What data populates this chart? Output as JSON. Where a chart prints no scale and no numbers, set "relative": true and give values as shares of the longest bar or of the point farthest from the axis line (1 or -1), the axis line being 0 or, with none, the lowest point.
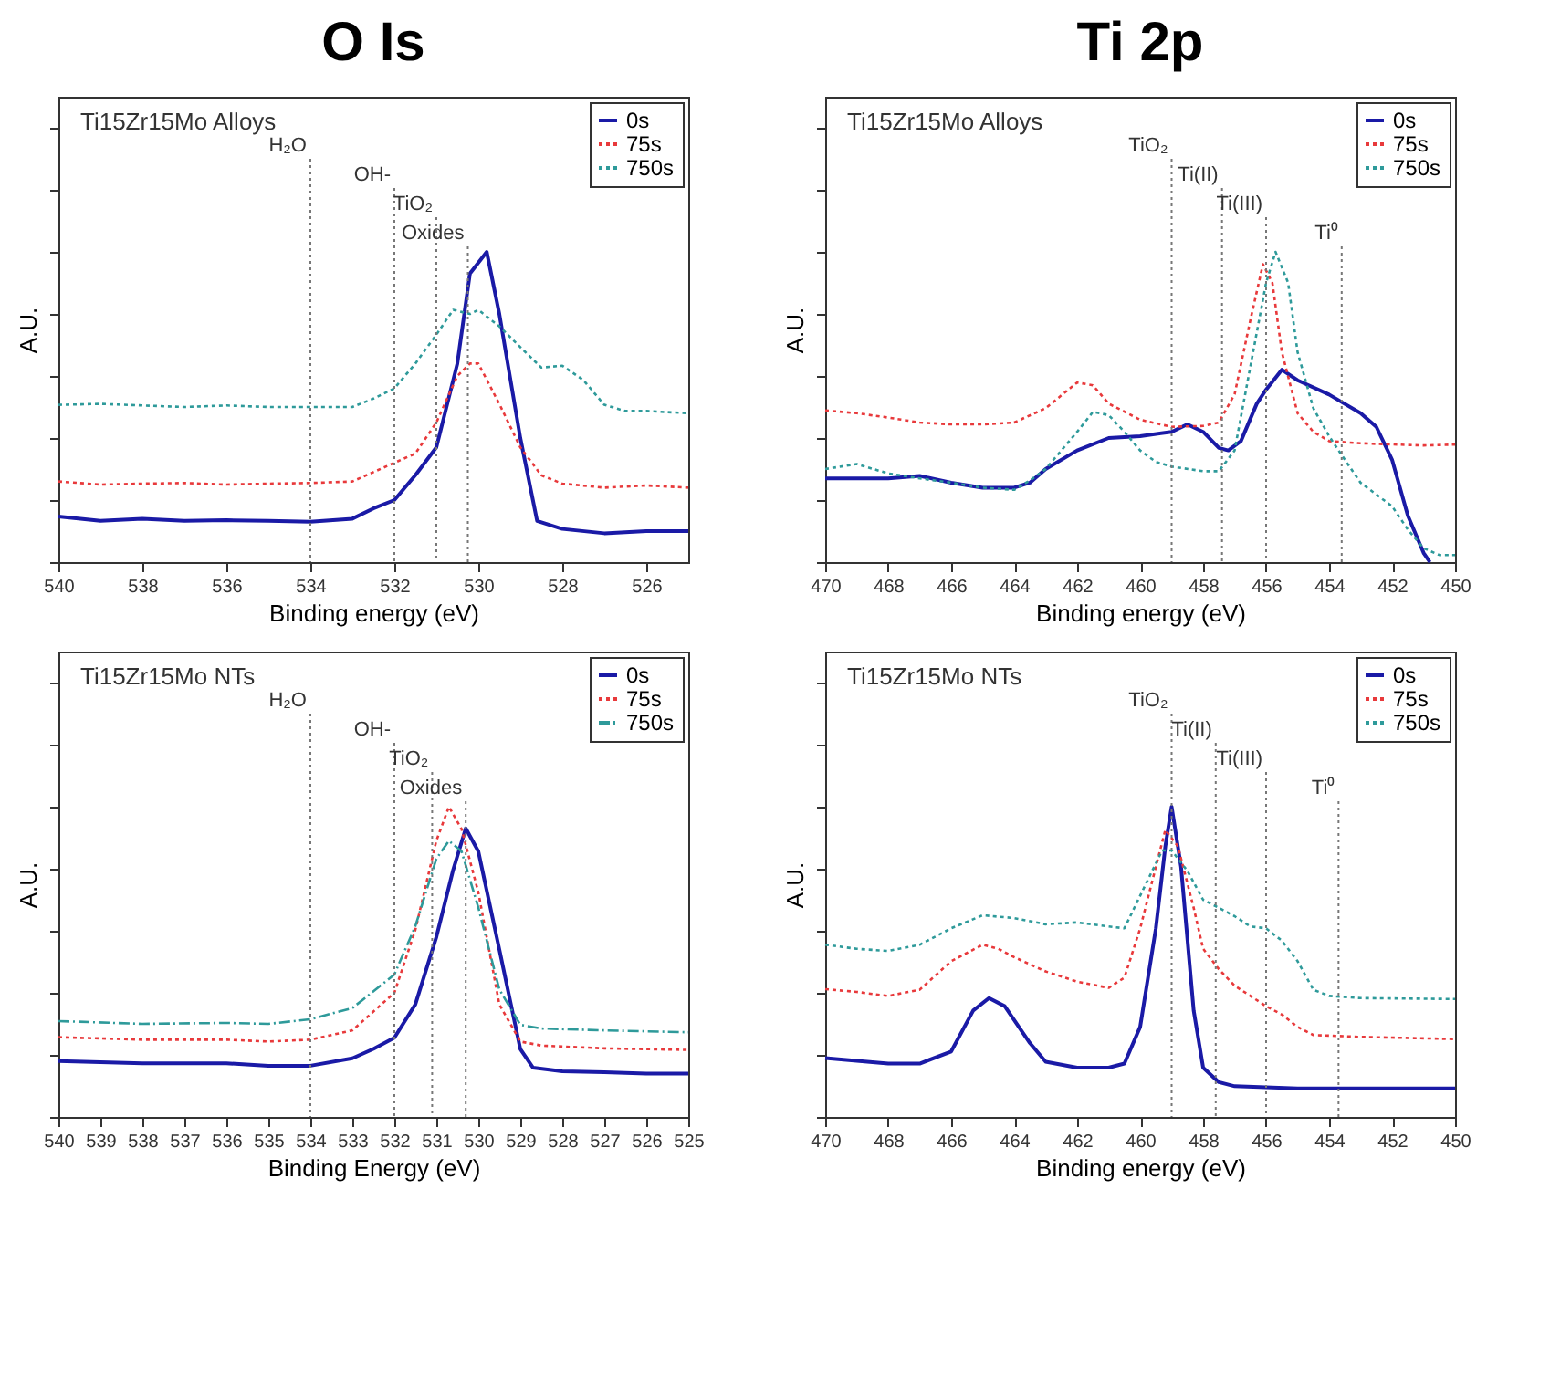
{
  "chart_data": [
    {
      "type": "line",
      "title": "O Is",
      "xlabel": "Binding energy (eV)",
      "ylabel": "A.U.",
      "relative": true,
      "legend": "top right",
      "xlim": [
        540,
        525
      ],
      "xticks": [
        540,
        538,
        536,
        534,
        532,
        530,
        528,
        526
      ],
      "annotations": [
        "Ti15Zr15Mo Alloys"
      ],
      "ref_lines": [
        {
          "axis": "x",
          "value": 534,
          "label": "H₂O"
        },
        {
          "axis": "x",
          "value": 532,
          "label": "OH-"
        },
        {
          "axis": "x",
          "value": 531,
          "label": "TiO₂"
        },
        {
          "axis": "x",
          "value": 530.25,
          "label": "Oxides"
        }
      ],
      "series": [
        {
          "name": "0s",
          "color": "#1a1aa6",
          "line_style": "solid",
          "x": [
            540,
            539,
            538,
            537,
            536,
            535,
            534,
            533,
            532.5,
            532,
            531.5,
            531,
            530.5,
            530.2,
            529.8,
            529.5,
            529,
            528.6,
            528,
            527,
            526,
            525
          ],
          "values": [
            0.147,
            0.133,
            0.14,
            0.133,
            0.135,
            0.133,
            0.13,
            0.14,
            0.173,
            0.2,
            0.28,
            0.37,
            0.64,
            0.93,
            1.0,
            0.8,
            0.4,
            0.133,
            0.107,
            0.093,
            0.1,
            0.1
          ]
        },
        {
          "name": "75s",
          "color": "#e8393b",
          "line_style": "dotted",
          "x": [
            540,
            539,
            538,
            537,
            536,
            535,
            534,
            533,
            532,
            531.5,
            531,
            530.5,
            530.2,
            530,
            529.5,
            529,
            528.5,
            528,
            527,
            526,
            525
          ],
          "values": [
            0.26,
            0.25,
            0.253,
            0.255,
            0.25,
            0.253,
            0.255,
            0.26,
            0.32,
            0.35,
            0.45,
            0.6,
            0.64,
            0.64,
            0.51,
            0.37,
            0.28,
            0.253,
            0.24,
            0.247,
            0.24
          ]
        },
        {
          "name": "750s",
          "color": "#2e9a9a",
          "line_style": "dotted",
          "x": [
            540,
            539,
            538,
            537,
            536,
            535,
            534,
            533,
            532.5,
            532,
            531.5,
            531,
            530.6,
            530.2,
            530,
            529.5,
            529,
            528.5,
            528,
            527.5,
            527,
            526.5,
            526,
            525
          ],
          "values": [
            0.507,
            0.51,
            0.505,
            0.5,
            0.505,
            0.5,
            0.5,
            0.5,
            0.527,
            0.56,
            0.64,
            0.733,
            0.813,
            0.8,
            0.813,
            0.76,
            0.693,
            0.627,
            0.633,
            0.587,
            0.507,
            0.487,
            0.487,
            0.48
          ]
        }
      ]
    },
    {
      "type": "line",
      "title": "Ti 2p",
      "xlabel": "Binding energy (eV)",
      "ylabel": "A.U.",
      "relative": true,
      "legend": "top right",
      "xlim": [
        470,
        450
      ],
      "xticks": [
        470,
        468,
        466,
        464,
        462,
        460,
        458,
        456,
        454,
        452,
        450
      ],
      "annotations": [
        "Ti15Zr15Mo Alloys"
      ],
      "ref_lines": [
        {
          "axis": "x",
          "value": 459,
          "label": "TiO₂"
        },
        {
          "axis": "x",
          "value": 457.4,
          "label": "Ti(II)"
        },
        {
          "axis": "x",
          "value": 456,
          "label": "Ti(III)"
        },
        {
          "axis": "x",
          "value": 453.6,
          "label": "Ti⁰"
        }
      ],
      "series": [
        {
          "name": "0s",
          "color": "#1a1aa6",
          "line_style": "solid",
          "x": [
            470,
            468,
            467,
            466,
            465,
            464,
            463.5,
            463,
            462,
            461,
            460,
            459,
            458.5,
            458,
            457.5,
            457.2,
            456.8,
            456.3,
            456,
            455.5,
            455,
            454,
            453.5,
            453,
            452.5,
            452,
            451.5,
            451,
            450.8
          ],
          "values": [
            0.27,
            0.27,
            0.278,
            0.256,
            0.24,
            0.24,
            0.256,
            0.3,
            0.36,
            0.4,
            0.406,
            0.42,
            0.444,
            0.42,
            0.368,
            0.36,
            0.39,
            0.51,
            0.556,
            0.62,
            0.586,
            0.54,
            0.51,
            0.48,
            0.436,
            0.33,
            0.15,
            0.03,
            0
          ]
        },
        {
          "name": "75s",
          "color": "#e8393b",
          "line_style": "dotted",
          "x": [
            470,
            469,
            468,
            467,
            466,
            465,
            464,
            463,
            462,
            461.5,
            461,
            460,
            459,
            458,
            457.5,
            457,
            456.5,
            456.1,
            455.8,
            455.5,
            455,
            454.5,
            454,
            453,
            451,
            450
          ],
          "values": [
            0.489,
            0.48,
            0.466,
            0.45,
            0.444,
            0.444,
            0.45,
            0.496,
            0.579,
            0.57,
            0.511,
            0.459,
            0.436,
            0.439,
            0.45,
            0.541,
            0.78,
            0.96,
            0.9,
            0.677,
            0.48,
            0.42,
            0.39,
            0.383,
            0.376,
            0.379
          ]
        },
        {
          "name": "750s",
          "color": "#2e9a9a",
          "line_style": "dotted",
          "x": [
            470,
            469,
            468,
            467,
            466,
            465,
            464,
            463.5,
            463,
            462,
            461.5,
            461,
            460.5,
            460,
            459.5,
            459,
            458,
            457.5,
            457,
            456.5,
            456,
            455.7,
            455.3,
            455,
            454.5,
            454,
            453.5,
            453,
            452,
            451.5,
            451,
            450.5,
            450
          ],
          "values": [
            0.3,
            0.316,
            0.286,
            0.27,
            0.256,
            0.24,
            0.233,
            0.263,
            0.3,
            0.42,
            0.484,
            0.474,
            0.42,
            0.36,
            0.323,
            0.308,
            0.293,
            0.293,
            0.36,
            0.63,
            0.9,
            1.0,
            0.9,
            0.677,
            0.496,
            0.406,
            0.33,
            0.256,
            0.18,
            0.105,
            0.045,
            0.023,
            0.023
          ]
        }
      ]
    },
    {
      "type": "line",
      "xlabel": "Binding Energy (eV)",
      "ylabel": "A.U.",
      "relative": true,
      "legend": "top right",
      "xlim": [
        540,
        525
      ],
      "xticks": [
        540,
        539,
        538,
        537,
        536,
        535,
        534,
        533,
        532,
        531,
        530,
        529,
        528,
        527,
        526,
        525
      ],
      "annotations": [
        "Ti15Zr15Mo NTs"
      ],
      "ref_lines": [
        {
          "axis": "x",
          "value": 534,
          "label": "H₂O"
        },
        {
          "axis": "x",
          "value": 532,
          "label": "OH-"
        },
        {
          "axis": "x",
          "value": 531.1,
          "label": "TiO₂"
        },
        {
          "axis": "x",
          "value": 530.3,
          "label": "Oxides"
        }
      ],
      "series": [
        {
          "name": "0s",
          "color": "#1a1aa6",
          "line_style": "solid",
          "x": [
            540,
            538,
            536,
            535,
            534,
            533,
            532.5,
            532,
            531.5,
            531,
            530.6,
            530.3,
            530,
            529.5,
            529,
            528.7,
            528,
            527,
            526,
            525
          ],
          "values": [
            0.18,
            0.173,
            0.173,
            0.165,
            0.165,
            0.189,
            0.219,
            0.255,
            0.363,
            0.58,
            0.796,
            0.93,
            0.856,
            0.54,
            0.219,
            0.159,
            0.147,
            0.144,
            0.14,
            0.14
          ]
        },
        {
          "name": "75s",
          "color": "#e8393b",
          "line_style": "dotted",
          "x": [
            540,
            538,
            536,
            535,
            534,
            533,
            532,
            531.5,
            531,
            530.7,
            530.4,
            530,
            529.5,
            529,
            528.5,
            527,
            525
          ],
          "values": [
            0.257,
            0.249,
            0.249,
            0.243,
            0.249,
            0.279,
            0.4,
            0.603,
            0.89,
            1.0,
            0.928,
            0.724,
            0.363,
            0.243,
            0.23,
            0.221,
            0.216
          ]
        },
        {
          "name": "750s",
          "color": "#2e9a9a",
          "line_style": "dashed",
          "x": [
            540,
            538,
            536,
            535,
            534,
            533,
            532,
            531.5,
            531,
            530.7,
            530.4,
            530,
            529.5,
            529,
            528.5,
            527,
            525
          ],
          "values": [
            0.309,
            0.3,
            0.303,
            0.3,
            0.315,
            0.351,
            0.459,
            0.615,
            0.832,
            0.89,
            0.856,
            0.675,
            0.411,
            0.297,
            0.285,
            0.279,
            0.273
          ]
        }
      ]
    },
    {
      "type": "line",
      "xlabel": "Binding energy (eV)",
      "ylabel": "A.U.",
      "relative": true,
      "legend": "top right",
      "xlim": [
        470,
        450
      ],
      "xticks": [
        470,
        468,
        466,
        464,
        462,
        460,
        458,
        456,
        454,
        452,
        450
      ],
      "annotations": [
        "Ti15Zr15Mo NTs"
      ],
      "ref_lines": [
        {
          "axis": "x",
          "value": 459,
          "label": "TiO₂"
        },
        {
          "axis": "x",
          "value": 457.6,
          "label": "Ti(II)"
        },
        {
          "axis": "x",
          "value": 456,
          "label": "Ti(III)"
        },
        {
          "axis": "x",
          "value": 453.7,
          "label": "Ti⁰"
        }
      ],
      "series": [
        {
          "name": "0s",
          "color": "#1a1aa6",
          "line_style": "solid",
          "x": [
            470,
            468,
            467,
            466,
            465.3,
            464.8,
            464.3,
            463.5,
            463,
            462,
            461,
            460.5,
            460,
            459.5,
            459.2,
            459,
            458.7,
            458.3,
            458,
            457.5,
            457,
            455,
            452,
            450
          ],
          "values": [
            0.19,
            0.172,
            0.172,
            0.211,
            0.343,
            0.383,
            0.357,
            0.238,
            0.178,
            0.159,
            0.159,
            0.172,
            0.29,
            0.608,
            0.872,
            1.0,
            0.806,
            0.343,
            0.159,
            0.112,
            0.099,
            0.092,
            0.092,
            0.092
          ]
        },
        {
          "name": "75s",
          "color": "#e8393b",
          "line_style": "dotted",
          "x": [
            470,
            469,
            468,
            467,
            466,
            465,
            464.5,
            464,
            463,
            462,
            461,
            460.5,
            460,
            459.5,
            459.2,
            458.8,
            458.3,
            458,
            457.5,
            457,
            456,
            455.5,
            455,
            454.5,
            453,
            450
          ],
          "values": [
            0.412,
            0.403,
            0.39,
            0.41,
            0.502,
            0.555,
            0.542,
            0.515,
            0.469,
            0.436,
            0.416,
            0.449,
            0.607,
            0.806,
            0.925,
            0.872,
            0.674,
            0.542,
            0.476,
            0.423,
            0.357,
            0.33,
            0.29,
            0.264,
            0.258,
            0.251
          ]
        },
        {
          "name": "750s",
          "color": "#2e9a9a",
          "line_style": "dotted",
          "x": [
            470,
            469,
            468,
            467,
            466,
            465,
            464,
            463,
            462,
            461,
            460.5,
            460,
            459.3,
            459,
            458.5,
            458,
            457.5,
            457,
            456.5,
            456,
            455.5,
            455,
            454.5,
            454,
            453,
            450
          ],
          "values": [
            0.555,
            0.542,
            0.535,
            0.555,
            0.608,
            0.65,
            0.641,
            0.621,
            0.627,
            0.614,
            0.608,
            0.713,
            0.859,
            0.859,
            0.793,
            0.7,
            0.674,
            0.647,
            0.614,
            0.608,
            0.568,
            0.502,
            0.41,
            0.39,
            0.383,
            0.38
          ]
        }
      ]
    }
  ]
}
